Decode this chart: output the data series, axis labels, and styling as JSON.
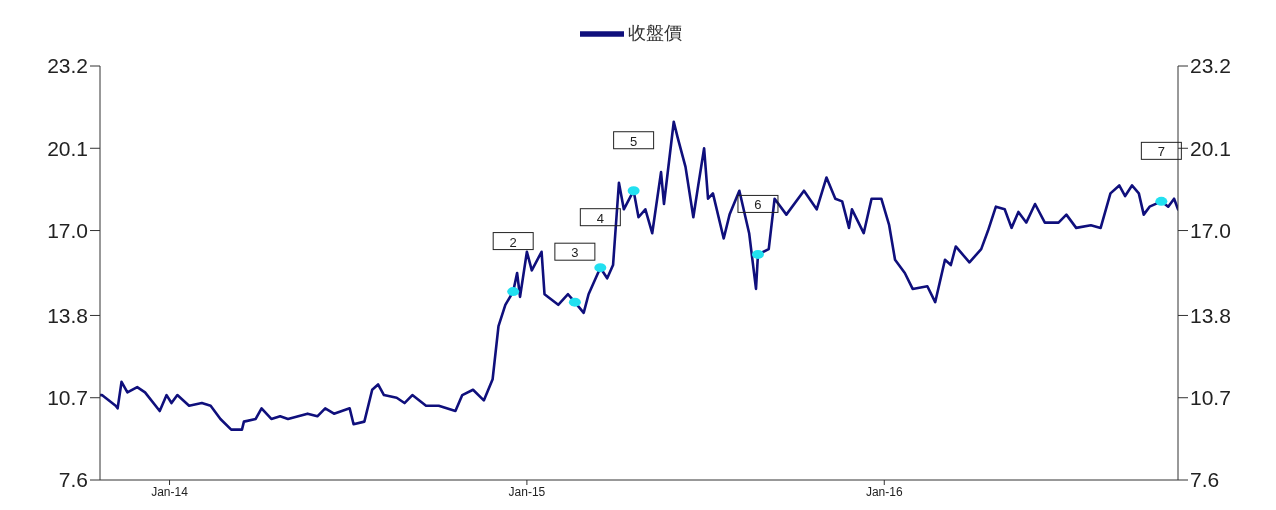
{
  "chart_data": {
    "type": "line",
    "legend": "top",
    "grid": false,
    "xlim": [
      "2013-10-22",
      "2016-10-27"
    ],
    "xticks": [
      {
        "value": "2014-01-01",
        "label": "Jan-14"
      },
      {
        "value": "2015-01-01",
        "label": "Jan-15"
      },
      {
        "value": "2016-01-01",
        "label": "Jan-16"
      }
    ],
    "ylim": [
      7.6,
      23.2
    ],
    "yticks": [
      7.6,
      10.7,
      13.8,
      {
        "value": 17,
        "label": "17.0"
      },
      20.1,
      23.2
    ],
    "y2lim": [
      7.6,
      23.2
    ],
    "y2ticks": [
      7.6,
      10.7,
      13.8,
      {
        "value": 17,
        "label": "17.0"
      },
      20.1,
      23.2
    ],
    "series": [
      {
        "name": "收盤價",
        "color": "#0f0f7c",
        "x": [
          "2013-10-22",
          "2013-10-24",
          "2013-11-07",
          "2013-11-09",
          "2013-11-13",
          "2013-11-19",
          "2013-11-29",
          "2013-12-07",
          "2013-12-22",
          "2013-12-29",
          "2014-01-03",
          "2014-01-09",
          "2014-01-21",
          "2014-02-03",
          "2014-02-12",
          "2014-02-22",
          "2014-03-05",
          "2014-03-16",
          "2014-03-18",
          "2014-03-30",
          "2014-04-05",
          "2014-04-15",
          "2014-04-24",
          "2014-05-02",
          "2014-05-22",
          "2014-06-01",
          "2014-06-09",
          "2014-06-18",
          "2014-07-04",
          "2014-07-08",
          "2014-07-19",
          "2014-07-27",
          "2014-08-02",
          "2014-08-08",
          "2014-08-21",
          "2014-08-29",
          "2014-09-06",
          "2014-09-20",
          "2014-10-03",
          "2014-10-20",
          "2014-10-27",
          "2014-11-07",
          "2014-11-18",
          "2014-11-27",
          "2014-12-03",
          "2014-12-10",
          "2014-12-18",
          "2014-12-22",
          "2014-12-25",
          "2015-01-01",
          "2015-01-06",
          "2015-01-16",
          "2015-01-19",
          "2015-02-02",
          "2015-02-12",
          "2015-02-19",
          "2015-02-28",
          "2015-03-05",
          "2015-03-17",
          "2015-03-24",
          "2015-03-30",
          "2015-04-05",
          "2015-04-10",
          "2015-04-20",
          "2015-04-25",
          "2015-05-02",
          "2015-05-09",
          "2015-05-18",
          "2015-05-21",
          "2015-05-31",
          "2015-06-04",
          "2015-06-12",
          "2015-06-20",
          "2015-06-25",
          "2015-07-01",
          "2015-07-05",
          "2015-07-10",
          "2015-07-21",
          "2015-07-27",
          "2015-08-06",
          "2015-08-16",
          "2015-08-23",
          "2015-08-25",
          "2015-09-05",
          "2015-09-11",
          "2015-09-23",
          "2015-10-11",
          "2015-10-24",
          "2015-11-03",
          "2015-11-12",
          "2015-11-19",
          "2015-11-26",
          "2015-11-29",
          "2015-12-11",
          "2015-12-19",
          "2015-12-29",
          "2016-01-06",
          "2016-01-12",
          "2016-01-22",
          "2016-01-30",
          "2016-02-14",
          "2016-02-22",
          "2016-03-03",
          "2016-03-09",
          "2016-03-14",
          "2016-03-28",
          "2016-04-09",
          "2016-04-16",
          "2016-04-24",
          "2016-05-03",
          "2016-05-10",
          "2016-05-17",
          "2016-05-25",
          "2016-06-03",
          "2016-06-13",
          "2016-06-27",
          "2016-07-05",
          "2016-07-15",
          "2016-07-30",
          "2016-08-09",
          "2016-08-19",
          "2016-08-28",
          "2016-09-03",
          "2016-09-10",
          "2016-09-17",
          "2016-09-22",
          "2016-09-28",
          "2016-10-10",
          "2016-10-17",
          "2016-10-23",
          "2016-10-27"
        ],
        "values": [
          10.8,
          10.8,
          10.4,
          10.3,
          11.3,
          10.9,
          11.1,
          10.9,
          10.2,
          10.8,
          10.5,
          10.8,
          10.4,
          10.5,
          10.4,
          9.9,
          9.5,
          9.5,
          9.8,
          9.9,
          10.3,
          9.9,
          10.0,
          9.9,
          10.1,
          10.0,
          10.3,
          10.1,
          10.3,
          9.7,
          9.8,
          11.0,
          11.2,
          10.8,
          10.7,
          10.5,
          10.8,
          10.4,
          10.4,
          10.2,
          10.8,
          11.0,
          10.6,
          11.4,
          13.4,
          14.2,
          14.7,
          15.4,
          14.5,
          16.2,
          15.5,
          16.2,
          14.6,
          14.2,
          14.6,
          14.3,
          13.9,
          14.6,
          15.6,
          15.2,
          15.7,
          18.8,
          17.8,
          18.5,
          17.5,
          17.8,
          16.9,
          19.2,
          18.0,
          21.1,
          20.5,
          19.4,
          17.5,
          18.7,
          20.1,
          18.2,
          18.4,
          16.7,
          17.6,
          18.5,
          16.9,
          14.8,
          16.1,
          16.3,
          18.2,
          17.6,
          18.5,
          17.8,
          19.0,
          18.2,
          18.1,
          17.1,
          17.8,
          16.9,
          18.2,
          18.2,
          17.2,
          15.9,
          15.4,
          14.8,
          14.9,
          14.3,
          15.9,
          15.7,
          16.4,
          15.8,
          16.3,
          17.0,
          17.9,
          17.8,
          17.1,
          17.7,
          17.3,
          18.0,
          17.3,
          17.3,
          17.6,
          17.1,
          17.2,
          17.1,
          18.4,
          18.7,
          18.3,
          18.7,
          18.4,
          17.6,
          17.9,
          18.1,
          17.9,
          18.2,
          17.8
        ]
      },
      {
        "type": "scatter",
        "color": "#22e0f0",
        "x": [
          "2014-12-18",
          "2015-02-19",
          "2015-03-17",
          "2015-04-20",
          "2015-08-25",
          "2016-10-10"
        ],
        "values": [
          14.7,
          14.3,
          15.6,
          18.5,
          16.1,
          18.1
        ]
      }
    ],
    "annotations": [
      "2",
      "3",
      "4",
      "5",
      "6",
      "7"
    ]
  }
}
